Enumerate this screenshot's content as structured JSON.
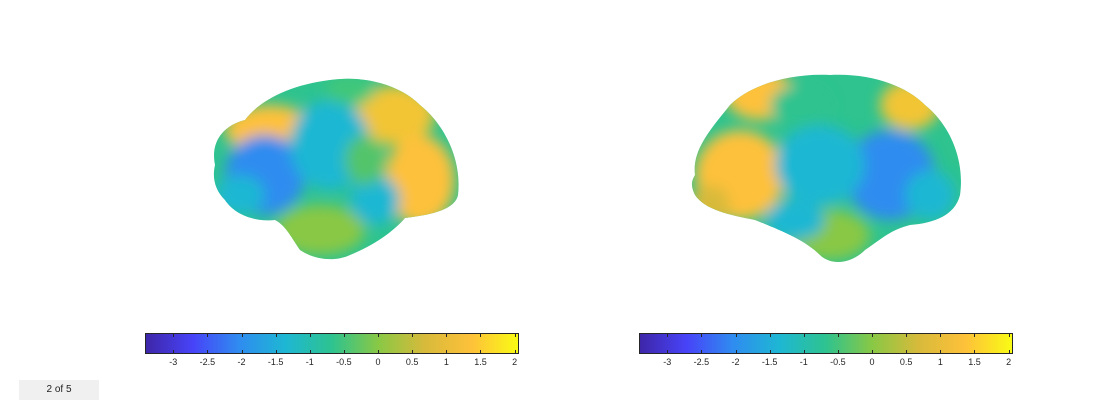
{
  "colormap": [
    "#3e26a8",
    "#4743f8",
    "#2f8cf0",
    "#1eb7d3",
    "#2ec38f",
    "#89c845",
    "#d8ba3b",
    "#fec13a",
    "#f9fb15"
  ],
  "colorbar": {
    "min": -3.4,
    "max": 2.05,
    "ticks": [
      "-3",
      "-2.5",
      "-2",
      "-1.5",
      "-1",
      "-0.5",
      "0",
      "0.5",
      "1",
      "1.5",
      "2"
    ],
    "tick_values": [
      -3,
      -2.5,
      -2,
      -1.5,
      -1,
      -0.5,
      0,
      0.5,
      1,
      1.5,
      2
    ]
  },
  "pagination": {
    "label": "2 of 5"
  }
}
